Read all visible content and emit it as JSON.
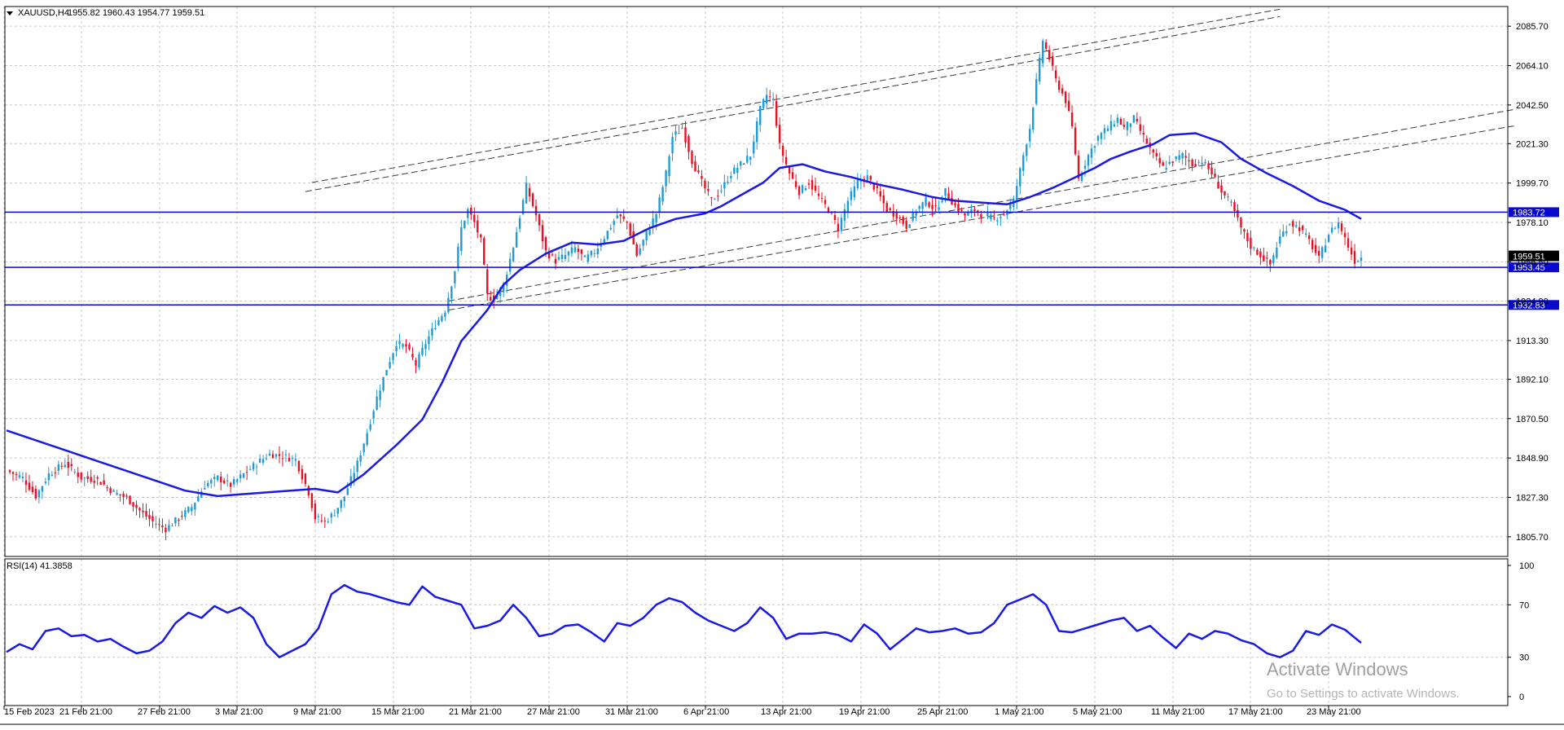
{
  "chart_data": {
    "type": "candlestick",
    "symbol_label": "XAUUSD,H4",
    "ohlc_header": "1955.82 1960.43 1954.77 1959.51",
    "price_axis": {
      "ylim": [
        1794.9,
        2096.5
      ],
      "ticks": [
        "2085.70",
        "2064.10",
        "2042.50",
        "2021.30",
        "1999.70",
        "1978.10",
        "1956.50",
        "1934.90",
        "1913.30",
        "1892.10",
        "1870.50",
        "1848.90",
        "1827.30",
        "1805.70"
      ]
    },
    "time_axis": {
      "ticks": [
        "15 Feb 2023",
        "21 Feb 21:00",
        "27 Feb 21:00",
        "3 Mar 21:00",
        "9 Mar 21:00",
        "15 Mar 21:00",
        "21 Mar 21:00",
        "27 Mar 21:00",
        "31 Mar 21:00",
        "6 Apr 21:00",
        "13 Apr 21:00",
        "19 Apr 21:00",
        "25 Apr 21:00",
        "1 May 21:00",
        "5 May 21:00",
        "11 May 21:00",
        "17 May 21:00",
        "23 May 21:00"
      ]
    },
    "bid_price": "1959.51",
    "levels": [
      {
        "value": 1983.72,
        "label": "1983.72"
      },
      {
        "value": 1953.45,
        "label": "1953.45"
      },
      {
        "value": 1932.83,
        "label": "1932.83"
      }
    ],
    "close_path": [
      [
        0,
        1842
      ],
      [
        5,
        1838
      ],
      [
        9,
        1828
      ],
      [
        13,
        1840
      ],
      [
        18,
        1846
      ],
      [
        23,
        1838
      ],
      [
        28,
        1837
      ],
      [
        33,
        1830
      ],
      [
        37,
        1827
      ],
      [
        41,
        1820
      ],
      [
        45,
        1814
      ],
      [
        49,
        1810
      ],
      [
        53,
        1816
      ],
      [
        57,
        1822
      ],
      [
        61,
        1834
      ],
      [
        65,
        1838
      ],
      [
        69,
        1834
      ],
      [
        73,
        1840
      ],
      [
        77,
        1846
      ],
      [
        81,
        1851
      ],
      [
        85,
        1850
      ],
      [
        89,
        1848
      ],
      [
        93,
        1830
      ],
      [
        95,
        1816
      ],
      [
        98,
        1814
      ],
      [
        101,
        1819
      ],
      [
        104,
        1828
      ],
      [
        108,
        1846
      ],
      [
        111,
        1863
      ],
      [
        114,
        1882
      ],
      [
        117,
        1898
      ],
      [
        120,
        1912
      ],
      [
        123,
        1910
      ],
      [
        126,
        1900
      ],
      [
        129,
        1912
      ],
      [
        132,
        1922
      ],
      [
        135,
        1930
      ],
      [
        138,
        1952
      ],
      [
        140,
        1975
      ],
      [
        142,
        1985
      ],
      [
        144,
        1978
      ],
      [
        146,
        1968
      ],
      [
        148,
        1938
      ],
      [
        150,
        1936
      ],
      [
        153,
        1944
      ],
      [
        156,
        1965
      ],
      [
        160,
        1998
      ],
      [
        163,
        1982
      ],
      [
        166,
        1962
      ],
      [
        169,
        1957
      ],
      [
        172,
        1960
      ],
      [
        175,
        1964
      ],
      [
        178,
        1958
      ],
      [
        181,
        1962
      ],
      [
        184,
        1970
      ],
      [
        188,
        1982
      ],
      [
        191,
        1978
      ],
      [
        194,
        1960
      ],
      [
        197,
        1972
      ],
      [
        200,
        1983
      ],
      [
        203,
        2005
      ],
      [
        205,
        2025
      ],
      [
        208,
        2030
      ],
      [
        211,
        2012
      ],
      [
        214,
        2000
      ],
      [
        217,
        1990
      ],
      [
        220,
        1996
      ],
      [
        223,
        2005
      ],
      [
        226,
        2010
      ],
      [
        229,
        2015
      ],
      [
        232,
        2040
      ],
      [
        234,
        2048
      ],
      [
        236,
        2045
      ],
      [
        238,
        2020
      ],
      [
        241,
        2005
      ],
      [
        244,
        1995
      ],
      [
        247,
        2000
      ],
      [
        250,
        1992
      ],
      [
        253,
        1985
      ],
      [
        256,
        1975
      ],
      [
        259,
        1990
      ],
      [
        262,
        2000
      ],
      [
        265,
        2003
      ],
      [
        268,
        1995
      ],
      [
        271,
        1985
      ],
      [
        274,
        1982
      ],
      [
        277,
        1976
      ],
      [
        280,
        1985
      ],
      [
        283,
        1990
      ],
      [
        286,
        1985
      ],
      [
        289,
        1995
      ],
      [
        292,
        1987
      ],
      [
        295,
        1982
      ],
      [
        298,
        1985
      ],
      [
        301,
        1982
      ],
      [
        304,
        1980
      ],
      [
        307,
        1983
      ],
      [
        310,
        1990
      ],
      [
        313,
        2015
      ],
      [
        315,
        2030
      ],
      [
        317,
        2055
      ],
      [
        319,
        2078
      ],
      [
        321,
        2068
      ],
      [
        323,
        2056
      ],
      [
        326,
        2045
      ],
      [
        328,
        2030
      ],
      [
        330,
        2002
      ],
      [
        333,
        2015
      ],
      [
        336,
        2025
      ],
      [
        339,
        2030
      ],
      [
        342,
        2035
      ],
      [
        344,
        2030
      ],
      [
        347,
        2035
      ],
      [
        350,
        2025
      ],
      [
        353,
        2015
      ],
      [
        356,
        2008
      ],
      [
        359,
        2012
      ],
      [
        362,
        2015
      ],
      [
        365,
        2010
      ],
      [
        368,
        2012
      ],
      [
        371,
        2005
      ],
      [
        374,
        1995
      ],
      [
        377,
        1988
      ],
      [
        380,
        1975
      ],
      [
        383,
        1965
      ],
      [
        386,
        1960
      ],
      [
        389,
        1955
      ],
      [
        392,
        1970
      ],
      [
        395,
        1978
      ],
      [
        398,
        1975
      ],
      [
        401,
        1968
      ],
      [
        404,
        1958
      ],
      [
        407,
        1972
      ],
      [
        410,
        1978
      ],
      [
        413,
        1965
      ],
      [
        415,
        1957
      ],
      [
        417,
        1959
      ]
    ],
    "ma_path": [
      [
        0,
        1864
      ],
      [
        20,
        1852
      ],
      [
        40,
        1840
      ],
      [
        55,
        1831
      ],
      [
        65,
        1828
      ],
      [
        80,
        1830
      ],
      [
        95,
        1832
      ],
      [
        102,
        1830
      ],
      [
        110,
        1840
      ],
      [
        120,
        1856
      ],
      [
        128,
        1870
      ],
      [
        134,
        1890
      ],
      [
        140,
        1913
      ],
      [
        148,
        1930
      ],
      [
        153,
        1944
      ],
      [
        158,
        1952
      ],
      [
        166,
        1961
      ],
      [
        174,
        1967
      ],
      [
        182,
        1966
      ],
      [
        190,
        1968
      ],
      [
        198,
        1975
      ],
      [
        206,
        1980
      ],
      [
        215,
        1983
      ],
      [
        220,
        1987
      ],
      [
        226,
        1993
      ],
      [
        233,
        2000
      ],
      [
        238,
        2008
      ],
      [
        245,
        2010
      ],
      [
        252,
        2006
      ],
      [
        260,
        2003
      ],
      [
        268,
        1999
      ],
      [
        276,
        1996
      ],
      [
        285,
        1992
      ],
      [
        292,
        1990
      ],
      [
        300,
        1989
      ],
      [
        308,
        1988
      ],
      [
        315,
        1992
      ],
      [
        322,
        1997
      ],
      [
        328,
        2002
      ],
      [
        335,
        2008
      ],
      [
        340,
        2013
      ],
      [
        346,
        2017
      ],
      [
        353,
        2021
      ],
      [
        358,
        2026
      ],
      [
        366,
        2027
      ],
      [
        374,
        2022
      ],
      [
        380,
        2013
      ],
      [
        388,
        2005
      ],
      [
        396,
        1998
      ],
      [
        404,
        1990
      ],
      [
        412,
        1985
      ],
      [
        417,
        1980
      ]
    ],
    "trendlines": [
      [
        [
          94,
          2000
        ],
        [
          392,
          2095
        ]
      ],
      [
        [
          92,
          1995
        ],
        [
          392,
          2091
        ]
      ],
      [
        [
          136,
          1935
        ],
        [
          464,
          2040
        ]
      ],
      [
        [
          136,
          1930
        ],
        [
          464,
          2031
        ]
      ]
    ],
    "rsi": {
      "label": "RSI(14) 41.3858",
      "ylim": [
        0,
        100
      ],
      "ticks": [
        100,
        70,
        30,
        0
      ],
      "values": [
        [
          0,
          34
        ],
        [
          4,
          40
        ],
        [
          8,
          36
        ],
        [
          12,
          50
        ],
        [
          16,
          52
        ],
        [
          20,
          46
        ],
        [
          24,
          47
        ],
        [
          28,
          42
        ],
        [
          32,
          44
        ],
        [
          36,
          38
        ],
        [
          40,
          33
        ],
        [
          44,
          35
        ],
        [
          48,
          42
        ],
        [
          52,
          56
        ],
        [
          56,
          64
        ],
        [
          60,
          60
        ],
        [
          64,
          69
        ],
        [
          68,
          64
        ],
        [
          72,
          68
        ],
        [
          76,
          60
        ],
        [
          80,
          40
        ],
        [
          84,
          30
        ],
        [
          88,
          35
        ],
        [
          92,
          40
        ],
        [
          96,
          52
        ],
        [
          100,
          78
        ],
        [
          104,
          85
        ],
        [
          108,
          80
        ],
        [
          112,
          78
        ],
        [
          116,
          75
        ],
        [
          120,
          72
        ],
        [
          124,
          70
        ],
        [
          128,
          84
        ],
        [
          132,
          76
        ],
        [
          136,
          73
        ],
        [
          140,
          70
        ],
        [
          144,
          52
        ],
        [
          148,
          54
        ],
        [
          152,
          58
        ],
        [
          156,
          70
        ],
        [
          160,
          60
        ],
        [
          164,
          46
        ],
        [
          168,
          48
        ],
        [
          172,
          54
        ],
        [
          176,
          55
        ],
        [
          180,
          49
        ],
        [
          184,
          42
        ],
        [
          188,
          56
        ],
        [
          192,
          54
        ],
        [
          196,
          60
        ],
        [
          200,
          70
        ],
        [
          204,
          75
        ],
        [
          208,
          72
        ],
        [
          212,
          64
        ],
        [
          216,
          58
        ],
        [
          220,
          54
        ],
        [
          224,
          50
        ],
        [
          228,
          56
        ],
        [
          232,
          68
        ],
        [
          236,
          60
        ],
        [
          240,
          44
        ],
        [
          244,
          48
        ],
        [
          248,
          48
        ],
        [
          252,
          49
        ],
        [
          256,
          47
        ],
        [
          260,
          42
        ],
        [
          264,
          55
        ],
        [
          268,
          48
        ],
        [
          272,
          36
        ],
        [
          276,
          44
        ],
        [
          280,
          52
        ],
        [
          284,
          49
        ],
        [
          288,
          50
        ],
        [
          292,
          52
        ],
        [
          296,
          48
        ],
        [
          300,
          49
        ],
        [
          304,
          56
        ],
        [
          308,
          70
        ],
        [
          312,
          74
        ],
        [
          316,
          78
        ],
        [
          320,
          70
        ],
        [
          324,
          50
        ],
        [
          328,
          49
        ],
        [
          332,
          52
        ],
        [
          336,
          55
        ],
        [
          340,
          58
        ],
        [
          344,
          60
        ],
        [
          348,
          50
        ],
        [
          352,
          54
        ],
        [
          356,
          45
        ],
        [
          360,
          37
        ],
        [
          364,
          48
        ],
        [
          368,
          44
        ],
        [
          372,
          50
        ],
        [
          376,
          48
        ],
        [
          380,
          43
        ],
        [
          384,
          40
        ],
        [
          388,
          33
        ],
        [
          392,
          30
        ],
        [
          396,
          35
        ],
        [
          400,
          50
        ],
        [
          404,
          47
        ],
        [
          408,
          55
        ],
        [
          412,
          51
        ],
        [
          416,
          43
        ],
        [
          417,
          41
        ]
      ]
    }
  },
  "watermark": {
    "line1": "Activate Windows",
    "line2": "Go to Settings to activate Windows."
  }
}
